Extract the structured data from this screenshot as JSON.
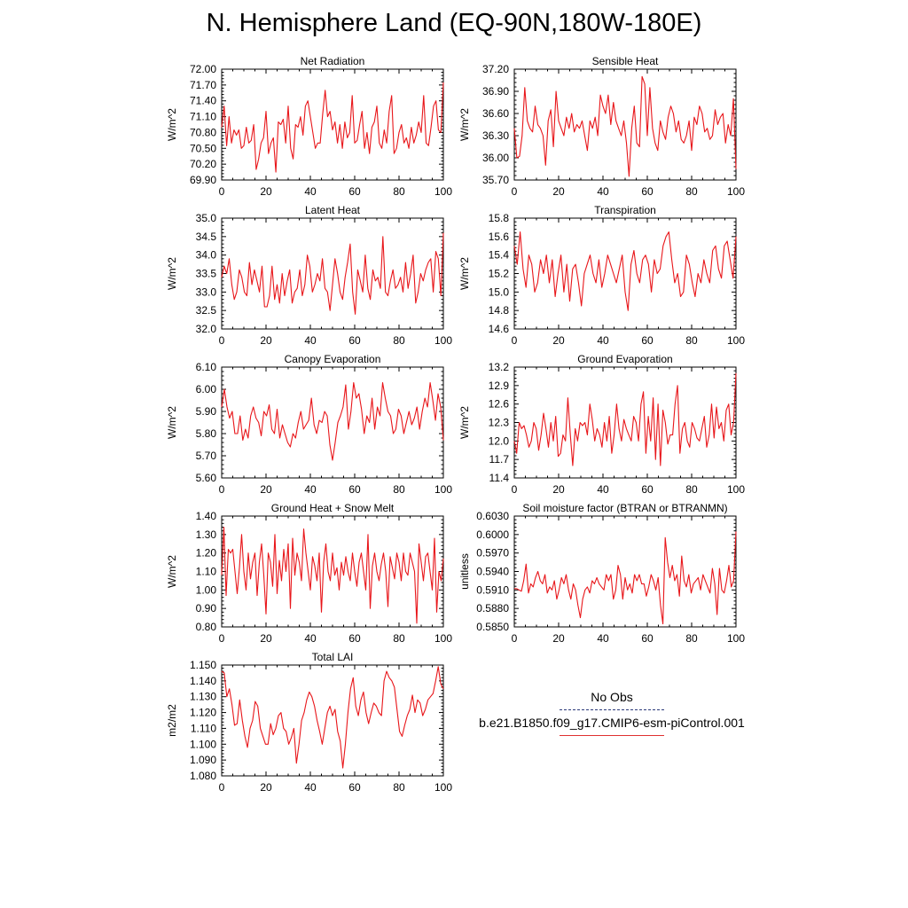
{
  "title": "N. Hemisphere Land (EQ-90N,180W-180E)",
  "line_color": "#e8161a",
  "legend": {
    "obs_label": "No Obs",
    "obs_color": "#2b3a7a",
    "model_label": "b.e21.B1850.f09_g17.CMIP6-esm-piControl.001",
    "model_color": "#e03030"
  },
  "chart_data": [
    {
      "type": "line",
      "title": "Net Radiation",
      "ylabel": "W/m^2",
      "xlim": [
        0,
        100
      ],
      "ylim": [
        69.9,
        72.0
      ],
      "xticks": [
        "0",
        "20",
        "40",
        "60",
        "80",
        "100"
      ],
      "yticks": [
        "69.90",
        "70.20",
        "70.50",
        "70.80",
        "71.10",
        "71.40",
        "71.70",
        "72.00"
      ],
      "x_start": 0,
      "values": [
        70.9,
        71.3,
        70.55,
        71.1,
        70.6,
        70.85,
        70.75,
        70.85,
        70.5,
        70.55,
        70.9,
        70.6,
        70.65,
        70.95,
        70.1,
        70.3,
        70.6,
        70.7,
        71.2,
        70.4,
        70.6,
        70.7,
        70.05,
        71.0,
        70.95,
        71.05,
        70.6,
        71.3,
        70.5,
        70.3,
        70.95,
        70.9,
        71.1,
        70.75,
        71.3,
        71.4,
        71.1,
        70.8,
        70.5,
        70.6,
        70.6,
        71.15,
        71.6,
        71.1,
        71.2,
        70.85,
        71.0,
        70.6,
        70.95,
        70.5,
        71.0,
        70.7,
        70.8,
        71.5,
        70.6,
        70.65,
        70.95,
        71.2,
        70.5,
        70.8,
        70.4,
        70.9,
        71.0,
        71.3,
        70.6,
        70.5,
        70.85,
        70.6,
        71.2,
        71.5,
        70.4,
        70.5,
        70.8,
        70.95,
        70.6,
        70.7,
        70.5,
        70.9,
        70.6,
        70.75,
        71.0,
        70.8,
        71.5,
        70.6,
        70.55,
        70.9,
        71.3,
        71.4,
        70.85,
        70.8,
        71.75
      ]
    },
    {
      "type": "line",
      "title": "Sensible Heat",
      "ylabel": "W/m^2",
      "xlim": [
        0,
        100
      ],
      "ylim": [
        35.7,
        37.2
      ],
      "xticks": [
        "0",
        "20",
        "40",
        "60",
        "80",
        "100"
      ],
      "yticks": [
        "35.70",
        "36.00",
        "36.30",
        "36.60",
        "36.90",
        "37.20"
      ],
      "x_start": 0,
      "values": [
        36.4,
        36.0,
        36.02,
        36.3,
        36.95,
        36.5,
        36.4,
        36.35,
        36.7,
        36.45,
        36.4,
        36.3,
        35.9,
        36.5,
        36.65,
        36.15,
        36.9,
        36.5,
        36.4,
        36.3,
        36.55,
        36.4,
        36.6,
        36.35,
        36.45,
        36.4,
        36.5,
        36.3,
        36.1,
        36.5,
        36.4,
        36.55,
        36.3,
        36.85,
        36.7,
        36.6,
        36.85,
        36.45,
        36.75,
        36.5,
        36.4,
        36.3,
        36.5,
        36.2,
        35.75,
        36.4,
        36.7,
        36.2,
        36.15,
        37.1,
        37.0,
        36.3,
        36.95,
        36.4,
        36.2,
        36.1,
        36.5,
        36.35,
        36.25,
        36.55,
        36.7,
        36.6,
        36.35,
        36.5,
        36.25,
        36.2,
        36.3,
        36.5,
        36.1,
        36.55,
        36.45,
        36.7,
        36.6,
        36.35,
        36.4,
        36.25,
        36.3,
        36.65,
        36.45,
        36.55,
        36.6,
        36.2,
        36.45,
        36.3,
        36.8,
        35.85
      ]
    },
    {
      "type": "line",
      "title": "Latent Heat",
      "ylabel": "W/m^2",
      "xlim": [
        0,
        100
      ],
      "ylim": [
        32.0,
        35.0
      ],
      "xticks": [
        "0",
        "20",
        "40",
        "60",
        "80",
        "100"
      ],
      "yticks": [
        "32.0",
        "32.5",
        "33.0",
        "33.5",
        "34.0",
        "34.5",
        "35.0"
      ],
      "x_start": 0,
      "values": [
        33.4,
        33.7,
        33.5,
        33.9,
        33.2,
        32.8,
        33.0,
        33.6,
        33.4,
        33.0,
        32.9,
        33.8,
        33.2,
        33.6,
        33.3,
        33.0,
        33.7,
        32.6,
        32.6,
        32.9,
        33.7,
        32.8,
        33.2,
        32.7,
        33.5,
        32.9,
        33.3,
        33.6,
        32.7,
        33.0,
        33.1,
        33.6,
        32.9,
        33.2,
        34.0,
        33.7,
        33.0,
        33.2,
        33.5,
        33.3,
        33.9,
        33.1,
        33.0,
        32.5,
        33.2,
        33.9,
        33.5,
        33.0,
        32.8,
        33.4,
        33.8,
        34.3,
        33.0,
        32.4,
        33.6,
        33.3,
        33.0,
        34.0,
        33.1,
        32.8,
        33.6,
        33.3,
        33.4,
        33.1,
        34.5,
        33.0,
        32.9,
        33.3,
        33.6,
        33.1,
        33.2,
        33.4,
        33.0,
        33.8,
        33.1,
        33.5,
        34.0,
        32.7,
        33.0,
        33.5,
        33.3,
        33.6,
        33.8,
        33.9,
        33.0,
        34.1,
        33.9,
        32.9,
        34.6
      ]
    },
    {
      "type": "line",
      "title": "Transpiration",
      "ylabel": "W/m^2",
      "xlim": [
        0,
        100
      ],
      "ylim": [
        14.6,
        15.8
      ],
      "xticks": [
        "0",
        "20",
        "40",
        "60",
        "80",
        "100"
      ],
      "yticks": [
        "14.6",
        "14.8",
        "15.0",
        "15.2",
        "15.4",
        "15.6",
        "15.8"
      ],
      "x_start": 0,
      "values": [
        15.5,
        15.3,
        15.65,
        15.25,
        15.05,
        15.4,
        15.3,
        15.0,
        15.1,
        15.35,
        15.2,
        15.4,
        15.1,
        15.35,
        14.95,
        15.2,
        15.4,
        15.0,
        15.3,
        14.9,
        15.25,
        15.3,
        15.1,
        14.85,
        15.2,
        15.3,
        15.4,
        15.2,
        15.1,
        15.35,
        15.05,
        15.2,
        15.4,
        15.3,
        15.2,
        15.1,
        15.25,
        15.4,
        15.0,
        14.8,
        15.3,
        15.45,
        15.2,
        15.1,
        15.35,
        15.4,
        15.3,
        15.0,
        15.35,
        15.2,
        15.25,
        15.5,
        15.6,
        15.65,
        15.35,
        15.1,
        15.2,
        14.95,
        15.0,
        15.4,
        15.3,
        15.1,
        14.95,
        15.2,
        15.1,
        15.35,
        15.2,
        15.1,
        15.45,
        15.5,
        15.25,
        15.15,
        15.5,
        15.55,
        15.35,
        15.15,
        15.6
      ]
    },
    {
      "type": "line",
      "title": "Canopy Evaporation",
      "ylabel": "W/m^2",
      "xlim": [
        0,
        100
      ],
      "ylim": [
        5.6,
        6.1
      ],
      "xticks": [
        "0",
        "20",
        "40",
        "60",
        "80",
        "100"
      ],
      "yticks": [
        "5.60",
        "5.70",
        "5.80",
        "5.90",
        "6.00",
        "6.10"
      ],
      "x_start": 0,
      "values": [
        5.92,
        6.0,
        5.92,
        5.87,
        5.9,
        5.8,
        5.8,
        5.88,
        5.77,
        5.82,
        5.78,
        5.88,
        5.92,
        5.87,
        5.85,
        5.79,
        5.9,
        5.88,
        5.93,
        5.82,
        5.8,
        5.91,
        5.78,
        5.84,
        5.8,
        5.76,
        5.74,
        5.8,
        5.78,
        5.85,
        5.9,
        5.82,
        5.84,
        5.86,
        5.96,
        5.84,
        5.8,
        5.86,
        5.85,
        5.9,
        5.88,
        5.75,
        5.68,
        5.76,
        5.85,
        5.88,
        5.92,
        6.02,
        5.82,
        5.9,
        6.03,
        5.96,
        5.98,
        5.91,
        5.8,
        5.88,
        5.85,
        5.96,
        5.82,
        5.92,
        5.88,
        6.03,
        5.96,
        5.9,
        5.88,
        5.8,
        5.82,
        5.91,
        5.88,
        5.8,
        5.85,
        5.9,
        5.84,
        5.87,
        5.92,
        5.82,
        5.9,
        5.96,
        5.92,
        6.03,
        5.95,
        5.86,
        5.98,
        5.92,
        5.77
      ]
    },
    {
      "type": "line",
      "title": "Ground Evaporation",
      "ylabel": "W/m^2",
      "xlim": [
        0,
        100
      ],
      "ylim": [
        11.4,
        13.2
      ],
      "xticks": [
        "0",
        "20",
        "40",
        "60",
        "80",
        "100"
      ],
      "yticks": [
        "11.4",
        "11.7",
        "12.0",
        "12.3",
        "12.6",
        "12.9",
        "13.2"
      ],
      "x_start": 0,
      "values": [
        12.0,
        11.8,
        12.3,
        12.2,
        12.25,
        12.1,
        11.9,
        12.0,
        12.3,
        12.2,
        11.85,
        12.1,
        12.45,
        12.2,
        11.9,
        12.3,
        12.0,
        12.4,
        11.75,
        11.8,
        12.1,
        12.0,
        12.7,
        12.1,
        11.6,
        12.2,
        12.0,
        12.3,
        12.25,
        12.3,
        12.1,
        12.6,
        12.35,
        12.0,
        12.2,
        12.1,
        11.9,
        12.3,
        12.0,
        12.4,
        11.8,
        12.1,
        12.6,
        12.2,
        12.0,
        12.35,
        12.2,
        12.1,
        12.0,
        12.4,
        12.3,
        12.0,
        12.6,
        12.8,
        11.8,
        12.4,
        12.0,
        12.7,
        11.7,
        12.6,
        11.6,
        12.5,
        12.3,
        11.95,
        12.1,
        12.1,
        12.6,
        12.9,
        11.8,
        12.2,
        12.3,
        12.0,
        11.9,
        12.3,
        12.2,
        12.05,
        12.0,
        12.2,
        12.4,
        11.9,
        12.1,
        12.6,
        12.05,
        12.55,
        12.2,
        12.3,
        12.0,
        12.5,
        12.6,
        12.1,
        12.3,
        13.1
      ]
    },
    {
      "type": "line",
      "title": "Ground Heat + Snow Melt",
      "ylabel": "W/m^2",
      "xlim": [
        0,
        100
      ],
      "ylim": [
        0.8,
        1.4
      ],
      "xticks": [
        "0",
        "20",
        "40",
        "60",
        "80",
        "100"
      ],
      "yticks": [
        "0.80",
        "0.90",
        "1.00",
        "1.10",
        "1.20",
        "1.30",
        "1.40"
      ],
      "x_start": 0,
      "values": [
        1.08,
        1.34,
        0.97,
        1.22,
        1.2,
        1.22,
        1.1,
        0.98,
        1.12,
        1.3,
        1.1,
        1.0,
        1.2,
        1.06,
        1.15,
        1.2,
        0.97,
        1.15,
        1.25,
        1.08,
        0.87,
        1.2,
        1.15,
        1.02,
        1.3,
        0.98,
        1.16,
        1.05,
        1.22,
        1.1,
        1.25,
        0.9,
        1.28,
        1.08,
        1.2,
        1.15,
        1.05,
        1.33,
        1.2,
        1.1,
        1.0,
        1.18,
        1.13,
        1.05,
        1.2,
        0.88,
        1.15,
        1.25,
        1.1,
        1.05,
        1.2,
        1.08,
        1.12,
        1.0,
        1.15,
        1.08,
        1.18,
        1.1,
        1.05,
        1.2,
        1.1,
        1.02,
        1.15,
        1.2,
        1.1,
        1.0,
        1.3,
        0.9,
        1.13,
        1.2,
        1.1,
        1.05,
        1.14,
        1.2,
        1.1,
        0.91,
        1.18,
        1.12,
        1.06,
        1.2,
        1.15,
        1.05,
        1.2,
        1.1,
        1.08,
        1.2,
        1.15,
        1.1,
        0.82,
        1.25,
        1.15,
        1.05,
        1.18,
        1.2,
        1.1,
        1.0,
        1.28,
        0.88,
        1.1,
        1.05,
        1.17
      ]
    },
    {
      "type": "line",
      "title": "Soil moisture factor (BTRAN or BTRANMN)",
      "ylabel": "unitless",
      "xlim": [
        0,
        100
      ],
      "ylim": [
        0.585,
        0.603
      ],
      "xticks": [
        "0",
        "20",
        "40",
        "60",
        "80",
        "100"
      ],
      "yticks": [
        "0.5850",
        "0.5880",
        "0.5910",
        "0.5940",
        "0.5970",
        "0.6000",
        "0.6030"
      ],
      "x_start": 0,
      "values": [
        0.5912,
        0.5912,
        0.591,
        0.5908,
        0.5925,
        0.5952,
        0.5905,
        0.592,
        0.5915,
        0.593,
        0.594,
        0.5925,
        0.592,
        0.5935,
        0.5905,
        0.5915,
        0.591,
        0.5925,
        0.5895,
        0.591,
        0.593,
        0.592,
        0.5935,
        0.591,
        0.5895,
        0.592,
        0.591,
        0.5885,
        0.5865,
        0.5895,
        0.591,
        0.5915,
        0.5905,
        0.5925,
        0.592,
        0.593,
        0.592,
        0.5915,
        0.591,
        0.5935,
        0.5925,
        0.5935,
        0.5895,
        0.591,
        0.595,
        0.5935,
        0.5895,
        0.593,
        0.591,
        0.592,
        0.5905,
        0.5935,
        0.5925,
        0.5935,
        0.592,
        0.592,
        0.59,
        0.5915,
        0.5935,
        0.5925,
        0.591,
        0.593,
        0.5885,
        0.5855,
        0.5995,
        0.5955,
        0.593,
        0.595,
        0.5925,
        0.5935,
        0.59,
        0.5965,
        0.5925,
        0.5915,
        0.5935,
        0.5905,
        0.592,
        0.5925,
        0.593,
        0.591,
        0.5935,
        0.5925,
        0.5915,
        0.5905,
        0.5945,
        0.592,
        0.587,
        0.5945,
        0.591,
        0.5905,
        0.5925,
        0.595,
        0.5915,
        0.5925,
        0.6005
      ]
    },
    {
      "type": "line",
      "title": "Total LAI",
      "ylabel": "m2/m2",
      "xlim": [
        0,
        100
      ],
      "ylim": [
        1.08,
        1.15
      ],
      "xticks": [
        "0",
        "20",
        "40",
        "60",
        "80",
        "100"
      ],
      "yticks": [
        "1.080",
        "1.090",
        "1.100",
        "1.110",
        "1.120",
        "1.130",
        "1.140",
        "1.150"
      ],
      "x_start": 0,
      "values": [
        1.146,
        1.145,
        1.13,
        1.135,
        1.125,
        1.112,
        1.113,
        1.128,
        1.115,
        1.105,
        1.098,
        1.11,
        1.115,
        1.127,
        1.124,
        1.11,
        1.105,
        1.1,
        1.1,
        1.113,
        1.106,
        1.11,
        1.118,
        1.12,
        1.11,
        1.108,
        1.1,
        1.104,
        1.11,
        1.088,
        1.1,
        1.115,
        1.12,
        1.128,
        1.133,
        1.13,
        1.124,
        1.115,
        1.108,
        1.1,
        1.11,
        1.12,
        1.124,
        1.118,
        1.122,
        1.108,
        1.102,
        1.085,
        1.1,
        1.12,
        1.135,
        1.142,
        1.124,
        1.118,
        1.128,
        1.133,
        1.12,
        1.113,
        1.12,
        1.126,
        1.124,
        1.12,
        1.118,
        1.14,
        1.146,
        1.142,
        1.14,
        1.136,
        1.122,
        1.108,
        1.105,
        1.112,
        1.118,
        1.122,
        1.131,
        1.12,
        1.128,
        1.126,
        1.118,
        1.122,
        1.128,
        1.13,
        1.132,
        1.14,
        1.149,
        1.138,
        1.135
      ]
    }
  ]
}
